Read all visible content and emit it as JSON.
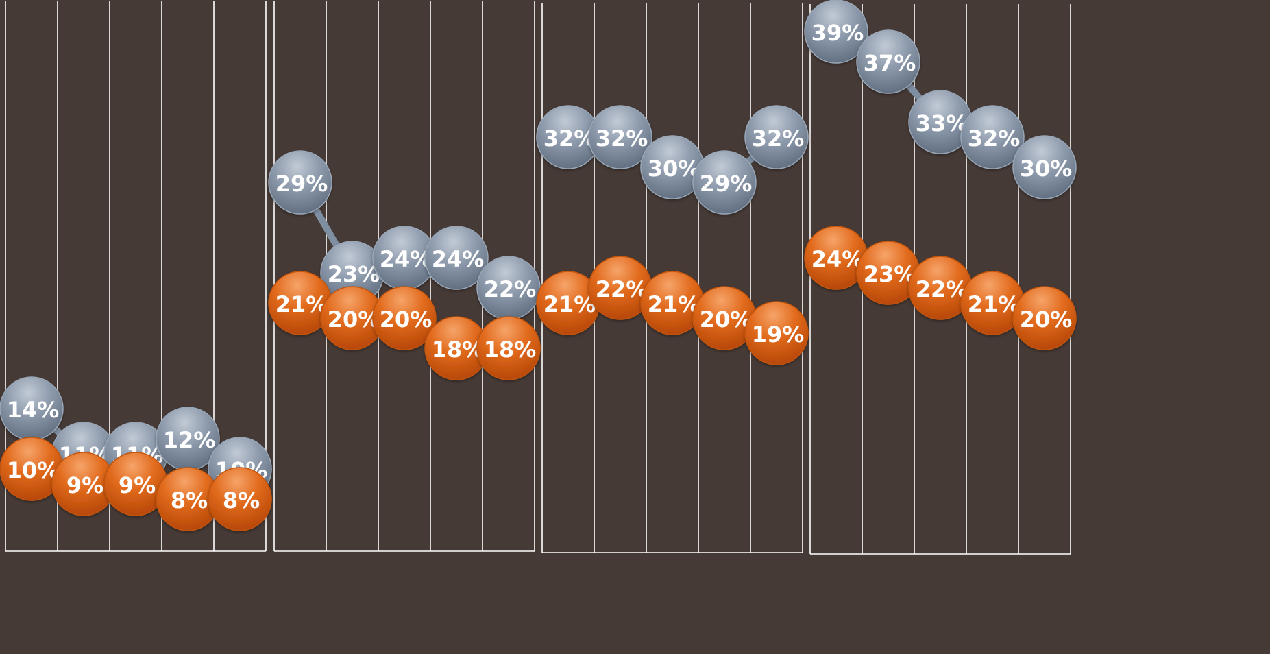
{
  "chart_data": [
    {
      "type": "line",
      "series": [
        {
          "values": [
            14,
            11,
            11,
            12,
            10
          ],
          "labels": [
            "14%",
            "11%",
            "11%",
            "12%",
            "10%"
          ]
        },
        {
          "values": [
            10,
            9,
            9,
            8,
            8
          ],
          "labels": [
            "10%",
            "9%",
            "9%",
            "8%",
            "8%"
          ]
        }
      ],
      "ylim": [
        0,
        45
      ],
      "grid": true
    },
    {
      "type": "line",
      "series": [
        {
          "values": [
            29,
            23,
            24,
            24,
            22
          ],
          "labels": [
            "29%",
            "23%",
            "24%",
            "24%",
            "22%"
          ]
        },
        {
          "values": [
            21,
            20,
            20,
            18,
            18
          ],
          "labels": [
            "21%",
            "20%",
            "20%",
            "18%",
            "18%"
          ]
        }
      ],
      "ylim": [
        0,
        45
      ],
      "grid": true
    },
    {
      "type": "line",
      "series": [
        {
          "values": [
            32,
            32,
            30,
            29,
            32
          ],
          "labels": [
            "32%",
            "32%",
            "30%",
            "29%",
            "32%"
          ]
        },
        {
          "values": [
            21,
            22,
            21,
            20,
            19
          ],
          "labels": [
            "21%",
            "22%",
            "21%",
            "20%",
            "19%"
          ]
        }
      ],
      "ylim": [
        0,
        45
      ],
      "grid": true
    },
    {
      "type": "line",
      "series": [
        {
          "values": [
            39,
            37,
            33,
            32,
            30
          ],
          "labels": [
            "39%",
            "37%",
            "33%",
            "32%",
            "30%"
          ]
        },
        {
          "values": [
            24,
            23,
            22,
            21,
            20
          ],
          "labels": [
            "24%",
            "23%",
            "22%",
            "21%",
            "20%"
          ]
        }
      ],
      "ylim": [
        0,
        45
      ],
      "grid": true
    }
  ],
  "colors": {
    "background": "#463a36",
    "gridline": "#ffffff",
    "series_gray": "#7f8fa2",
    "series_orange": "#dd6010"
  }
}
